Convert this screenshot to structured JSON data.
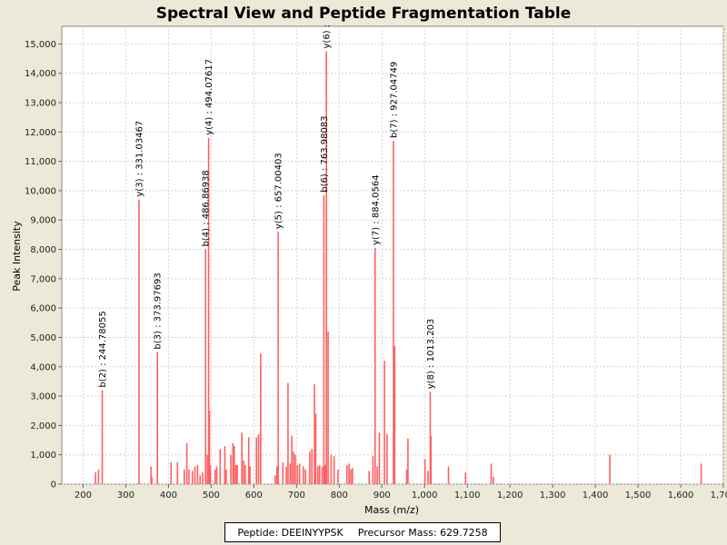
{
  "chart_data": {
    "type": "bar",
    "subtype": "mass-spectrum-sticks",
    "title": "Spectral View and Peptide Fragmentation Table",
    "xlabel": "Mass (m/z)",
    "ylabel": "Peak Intensity",
    "xlim": [
      150,
      1700
    ],
    "ylim": [
      0,
      15600
    ],
    "x_ticks": [
      200,
      300,
      400,
      500,
      600,
      700,
      800,
      900,
      1000,
      1100,
      1200,
      1300,
      1400,
      1500,
      1600,
      1700
    ],
    "x_tick_labels": [
      "200",
      "300",
      "400",
      "500",
      "600",
      "700",
      "800",
      "900",
      "1,000",
      "1,100",
      "1,200",
      "1,300",
      "1,400",
      "1,500",
      "1,600",
      "1,700"
    ],
    "y_ticks": [
      0,
      1000,
      2000,
      3000,
      4000,
      5000,
      6000,
      7000,
      8000,
      9000,
      10000,
      11000,
      12000,
      13000,
      14000,
      15000
    ],
    "y_tick_labels": [
      "0",
      "1,000",
      "2,000",
      "3,000",
      "4,000",
      "5,000",
      "6,000",
      "7,000",
      "8,000",
      "9,000",
      "10,000",
      "11,000",
      "12,000",
      "13,000",
      "14,000",
      "15,000"
    ],
    "peak_color": "#ff6060",
    "peaks": [
      {
        "mz": 229,
        "intensity": 400
      },
      {
        "mz": 236,
        "intensity": 500
      },
      {
        "mz": 244.78,
        "intensity": 3200
      },
      {
        "mz": 331.03,
        "intensity": 9700
      },
      {
        "mz": 359,
        "intensity": 600
      },
      {
        "mz": 361,
        "intensity": 250
      },
      {
        "mz": 373.98,
        "intensity": 4500
      },
      {
        "mz": 406,
        "intensity": 750
      },
      {
        "mz": 421,
        "intensity": 750
      },
      {
        "mz": 437,
        "intensity": 500
      },
      {
        "mz": 443,
        "intensity": 1400
      },
      {
        "mz": 448,
        "intensity": 500
      },
      {
        "mz": 456,
        "intensity": 450
      },
      {
        "mz": 462,
        "intensity": 600
      },
      {
        "mz": 468,
        "intensity": 650
      },
      {
        "mz": 474,
        "intensity": 300
      },
      {
        "mz": 480,
        "intensity": 400
      },
      {
        "mz": 486.87,
        "intensity": 8000
      },
      {
        "mz": 491,
        "intensity": 1000
      },
      {
        "mz": 494.08,
        "intensity": 11800
      },
      {
        "mz": 496,
        "intensity": 2500
      },
      {
        "mz": 498,
        "intensity": 650
      },
      {
        "mz": 509,
        "intensity": 500
      },
      {
        "mz": 513,
        "intensity": 600
      },
      {
        "mz": 521,
        "intensity": 1200
      },
      {
        "mz": 532,
        "intensity": 1300
      },
      {
        "mz": 535,
        "intensity": 500
      },
      {
        "mz": 546,
        "intensity": 1000
      },
      {
        "mz": 551,
        "intensity": 1400
      },
      {
        "mz": 554,
        "intensity": 1300
      },
      {
        "mz": 558,
        "intensity": 650
      },
      {
        "mz": 561,
        "intensity": 650
      },
      {
        "mz": 572,
        "intensity": 1750
      },
      {
        "mz": 576,
        "intensity": 800
      },
      {
        "mz": 580,
        "intensity": 650
      },
      {
        "mz": 588,
        "intensity": 1600
      },
      {
        "mz": 591,
        "intensity": 600
      },
      {
        "mz": 606,
        "intensity": 1600
      },
      {
        "mz": 611,
        "intensity": 1700
      },
      {
        "mz": 616,
        "intensity": 4450
      },
      {
        "mz": 650,
        "intensity": 300
      },
      {
        "mz": 654,
        "intensity": 600
      },
      {
        "mz": 657.0,
        "intensity": 8600
      },
      {
        "mz": 668,
        "intensity": 750
      },
      {
        "mz": 676,
        "intensity": 600
      },
      {
        "mz": 680,
        "intensity": 3450
      },
      {
        "mz": 685,
        "intensity": 700
      },
      {
        "mz": 689,
        "intensity": 1650
      },
      {
        "mz": 693,
        "intensity": 1100
      },
      {
        "mz": 697,
        "intensity": 1000
      },
      {
        "mz": 702,
        "intensity": 650
      },
      {
        "mz": 707,
        "intensity": 700
      },
      {
        "mz": 716,
        "intensity": 600
      },
      {
        "mz": 721,
        "intensity": 500
      },
      {
        "mz": 731,
        "intensity": 1100
      },
      {
        "mz": 736,
        "intensity": 1200
      },
      {
        "mz": 742,
        "intensity": 3400
      },
      {
        "mz": 745,
        "intensity": 2400
      },
      {
        "mz": 750,
        "intensity": 600
      },
      {
        "mz": 754,
        "intensity": 650
      },
      {
        "mz": 760,
        "intensity": 600
      },
      {
        "mz": 763.98,
        "intensity": 9850
      },
      {
        "mz": 767,
        "intensity": 650
      },
      {
        "mz": 770,
        "intensity": 14750
      },
      {
        "mz": 774,
        "intensity": 5200
      },
      {
        "mz": 781,
        "intensity": 1000
      },
      {
        "mz": 788,
        "intensity": 950
      },
      {
        "mz": 797,
        "intensity": 500
      },
      {
        "mz": 818,
        "intensity": 650
      },
      {
        "mz": 823,
        "intensity": 700
      },
      {
        "mz": 827,
        "intensity": 500
      },
      {
        "mz": 831,
        "intensity": 550
      },
      {
        "mz": 870,
        "intensity": 450
      },
      {
        "mz": 879,
        "intensity": 950
      },
      {
        "mz": 884.06,
        "intensity": 8050
      },
      {
        "mz": 889,
        "intensity": 600
      },
      {
        "mz": 894,
        "intensity": 1750
      },
      {
        "mz": 906,
        "intensity": 4200
      },
      {
        "mz": 912,
        "intensity": 1700
      },
      {
        "mz": 927.05,
        "intensity": 11700
      },
      {
        "mz": 930,
        "intensity": 4700
      },
      {
        "mz": 958,
        "intensity": 500
      },
      {
        "mz": 961,
        "intensity": 1550
      },
      {
        "mz": 1001,
        "intensity": 850
      },
      {
        "mz": 1008,
        "intensity": 450
      },
      {
        "mz": 1013.2,
        "intensity": 3150
      },
      {
        "mz": 1015,
        "intensity": 1650
      },
      {
        "mz": 1056,
        "intensity": 600
      },
      {
        "mz": 1096,
        "intensity": 400
      },
      {
        "mz": 1156,
        "intensity": 700
      },
      {
        "mz": 1161,
        "intensity": 250
      },
      {
        "mz": 1434,
        "intensity": 1000
      },
      {
        "mz": 1648,
        "intensity": 700
      }
    ],
    "annotations": [
      {
        "label": "b(2) : 244.78055",
        "mz": 244.78,
        "intensity": 3200
      },
      {
        "label": "y(3) : 331.03467",
        "mz": 331.03,
        "intensity": 9700
      },
      {
        "label": "b(3) : 373.97693",
        "mz": 373.98,
        "intensity": 4500
      },
      {
        "label": "b(4) : 486.86938",
        "mz": 486.87,
        "intensity": 8000
      },
      {
        "label": "y(4) : 494.07617",
        "mz": 494.08,
        "intensity": 11800
      },
      {
        "label": "y(5) : 657.00403",
        "mz": 657.0,
        "intensity": 8600
      },
      {
        "label": "b(6) : 763.98083",
        "mz": 763.98,
        "intensity": 9850
      },
      {
        "label": "y(6) :",
        "mz": 770,
        "intensity": 14750
      },
      {
        "label": "y(7) : 884.0564",
        "mz": 884.06,
        "intensity": 8050
      },
      {
        "label": "b(7) : 927.04749",
        "mz": 927.05,
        "intensity": 11700
      },
      {
        "label": "y(8) : 1013.203",
        "mz": 1013.2,
        "intensity": 3150
      }
    ],
    "legend": {
      "peptide_label": "Peptide: DEEINYYPSK",
      "precursor_label": "Precursor Mass: 629.7258",
      "placement": "bottom-center"
    }
  }
}
